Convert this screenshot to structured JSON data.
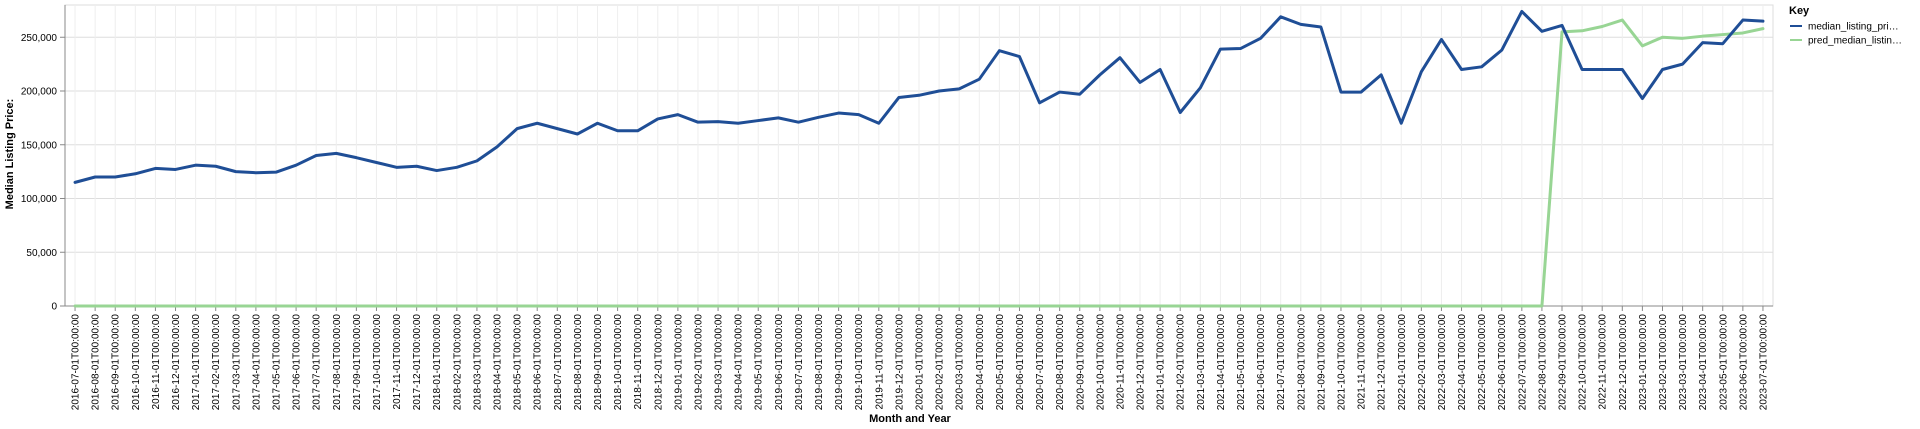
{
  "chart_data": {
    "type": "line",
    "xlabel": "Month and Year",
    "ylabel": "Median Listing Price:",
    "ylim": [
      0,
      280000
    ],
    "yticks": [
      0,
      50000,
      100000,
      150000,
      200000,
      250000
    ],
    "ytick_labels": [
      "0",
      "50,000",
      "100,000",
      "150,000",
      "200,000",
      "250,000"
    ],
    "grid": true,
    "legend_title": "Key",
    "legend_position": "top-right",
    "categories": [
      "2016-07-01T00:00:00",
      "2016-08-01T00:00:00",
      "2016-09-01T00:00:00",
      "2016-10-01T00:00:00",
      "2016-11-01T00:00:00",
      "2016-12-01T00:00:00",
      "2017-01-01T00:00:00",
      "2017-02-01T00:00:00",
      "2017-03-01T00:00:00",
      "2017-04-01T00:00:00",
      "2017-05-01T00:00:00",
      "2017-06-01T00:00:00",
      "2017-07-01T00:00:00",
      "2017-08-01T00:00:00",
      "2017-09-01T00:00:00",
      "2017-10-01T00:00:00",
      "2017-11-01T00:00:00",
      "2017-12-01T00:00:00",
      "2018-01-01T00:00:00",
      "2018-02-01T00:00:00",
      "2018-03-01T00:00:00",
      "2018-04-01T00:00:00",
      "2018-05-01T00:00:00",
      "2018-06-01T00:00:00",
      "2018-07-01T00:00:00",
      "2018-08-01T00:00:00",
      "2018-09-01T00:00:00",
      "2018-10-01T00:00:00",
      "2018-11-01T00:00:00",
      "2018-12-01T00:00:00",
      "2019-01-01T00:00:00",
      "2019-02-01T00:00:00",
      "2019-03-01T00:00:00",
      "2019-04-01T00:00:00",
      "2019-05-01T00:00:00",
      "2019-06-01T00:00:00",
      "2019-07-01T00:00:00",
      "2019-08-01T00:00:00",
      "2019-09-01T00:00:00",
      "2019-10-01T00:00:00",
      "2019-11-01T00:00:00",
      "2019-12-01T00:00:00",
      "2020-01-01T00:00:00",
      "2020-02-01T00:00:00",
      "2020-03-01T00:00:00",
      "2020-04-01T00:00:00",
      "2020-05-01T00:00:00",
      "2020-06-01T00:00:00",
      "2020-07-01T00:00:00",
      "2020-08-01T00:00:00",
      "2020-09-01T00:00:00",
      "2020-10-01T00:00:00",
      "2020-11-01T00:00:00",
      "2020-12-01T00:00:00",
      "2021-01-01T00:00:00",
      "2021-02-01T00:00:00",
      "2021-03-01T00:00:00",
      "2021-04-01T00:00:00",
      "2021-05-01T00:00:00",
      "2021-06-01T00:00:00",
      "2021-07-01T00:00:00",
      "2021-08-01T00:00:00",
      "2021-09-01T00:00:00",
      "2021-10-01T00:00:00",
      "2021-11-01T00:00:00",
      "2021-12-01T00:00:00",
      "2022-01-01T00:00:00",
      "2022-02-01T00:00:00",
      "2022-03-01T00:00:00",
      "2022-04-01T00:00:00",
      "2022-05-01T00:00:00",
      "2022-06-01T00:00:00",
      "2022-07-01T00:00:00",
      "2022-08-01T00:00:00",
      "2022-09-01T00:00:00",
      "2022-10-01T00:00:00",
      "2022-11-01T00:00:00",
      "2022-12-01T00:00:00",
      "2023-01-01T00:00:00",
      "2023-02-01T00:00:00",
      "2023-03-01T00:00:00",
      "2023-04-01T00:00:00",
      "2023-05-01T00:00:00",
      "2023-06-01T00:00:00",
      "2023-07-01T00:00:00"
    ],
    "series": [
      {
        "name": "median_listing_pri…",
        "color": "#1f4e96",
        "values": [
          115000,
          120000,
          120000,
          123000,
          128000,
          127000,
          131000,
          130000,
          125000,
          124000,
          124500,
          131000,
          140000,
          142000,
          138000,
          133500,
          129000,
          130000,
          126000,
          129000,
          135000,
          148000,
          165000,
          170000,
          165000,
          160000,
          170000,
          163000,
          163000,
          174000,
          178000,
          171000,
          171500,
          170000,
          172500,
          175000,
          171000,
          175500,
          179500,
          178000,
          170000,
          194000,
          196000,
          200000,
          202000,
          211000,
          237500,
          232000,
          189000,
          199000,
          197000,
          215000,
          231000,
          208000,
          220000,
          180000,
          203000,
          239000,
          239500,
          249000,
          269000,
          262000,
          259500,
          199000,
          199000,
          215000,
          170000,
          218000,
          248000,
          220000,
          222500,
          238000,
          274000,
          255500,
          261000,
          220000,
          220000,
          220000,
          193000,
          220000,
          225000,
          245000,
          244000,
          266000,
          265000
        ]
      },
      {
        "name": "pred_median_listin…",
        "color": "#98d594",
        "values": [
          0,
          0,
          0,
          0,
          0,
          0,
          0,
          0,
          0,
          0,
          0,
          0,
          0,
          0,
          0,
          0,
          0,
          0,
          0,
          0,
          0,
          0,
          0,
          0,
          0,
          0,
          0,
          0,
          0,
          0,
          0,
          0,
          0,
          0,
          0,
          0,
          0,
          0,
          0,
          0,
          0,
          0,
          0,
          0,
          0,
          0,
          0,
          0,
          0,
          0,
          0,
          0,
          0,
          0,
          0,
          0,
          0,
          0,
          0,
          0,
          0,
          0,
          0,
          0,
          0,
          0,
          0,
          0,
          0,
          0,
          0,
          0,
          0,
          0,
          255000,
          256000,
          260000,
          266000,
          242000,
          250000,
          249000,
          251000,
          252500,
          254000,
          258000
        ]
      }
    ]
  }
}
